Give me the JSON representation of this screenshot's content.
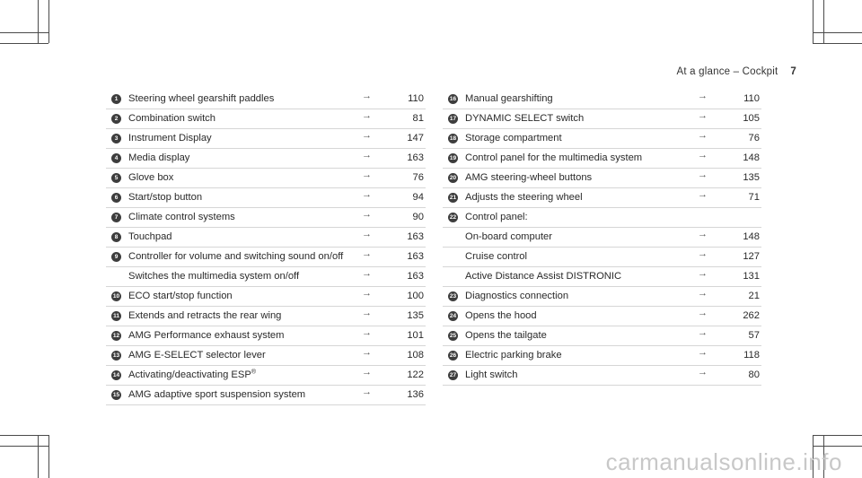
{
  "header": {
    "title": "At a glance – Cockpit",
    "page_number": "7"
  },
  "left_items": [
    {
      "num": "1",
      "label": "Steering wheel gearshift paddles",
      "page": "110"
    },
    {
      "num": "2",
      "label": "Combination switch",
      "page": "81"
    },
    {
      "num": "3",
      "label": "Instrument Display",
      "page": "147"
    },
    {
      "num": "4",
      "label": "Media display",
      "page": "163"
    },
    {
      "num": "5",
      "label": "Glove box",
      "page": "76"
    },
    {
      "num": "6",
      "label": "Start/stop button",
      "page": "94"
    },
    {
      "num": "7",
      "label": "Climate control systems",
      "page": "90"
    },
    {
      "num": "8",
      "label": "Touchpad",
      "page": "163"
    },
    {
      "num": "9",
      "label": "Controller for volume and switching sound on/off",
      "page": "163"
    },
    {
      "num": "",
      "label": "Switches the multimedia system on/off",
      "page": "163"
    },
    {
      "num": "10",
      "label": "ECO start/stop function",
      "page": "100"
    },
    {
      "num": "11",
      "label": "Extends and retracts the rear wing",
      "page": "135"
    },
    {
      "num": "12",
      "label": "AMG Performance exhaust system",
      "page": "101"
    },
    {
      "num": "13",
      "label": "AMG E-SELECT selector lever",
      "page": "108"
    },
    {
      "num": "14",
      "label": "Activating/deactivating ESP",
      "sup": "®",
      "page": "122"
    },
    {
      "num": "15",
      "label": "AMG adaptive sport suspension system",
      "page": "136"
    }
  ],
  "right_items": [
    {
      "num": "16",
      "label": "Manual gearshifting",
      "page": "110"
    },
    {
      "num": "17",
      "label": "DYNAMIC SELECT switch",
      "page": "105"
    },
    {
      "num": "18",
      "label": "Storage compartment",
      "page": "76"
    },
    {
      "num": "19",
      "label": "Control panel for the multimedia system",
      "page": "148"
    },
    {
      "num": "20",
      "label": "AMG steering-wheel buttons",
      "page": "135"
    },
    {
      "num": "21",
      "label": "Adjusts the steering wheel",
      "page": "71"
    },
    {
      "num": "22",
      "label": "Control panel:",
      "page": ""
    },
    {
      "num": "",
      "label": "On-board computer",
      "page": "148"
    },
    {
      "num": "",
      "label": "Cruise control",
      "page": "127"
    },
    {
      "num": "",
      "label": "Active Distance Assist DISTRONIC",
      "page": "131"
    },
    {
      "num": "23",
      "label": "Diagnostics connection",
      "page": "21"
    },
    {
      "num": "24",
      "label": "Opens the hood",
      "page": "262"
    },
    {
      "num": "25",
      "label": "Opens the tailgate",
      "page": "57"
    },
    {
      "num": "26",
      "label": "Electric parking brake",
      "page": "118"
    },
    {
      "num": "27",
      "label": "Light switch",
      "page": "80"
    }
  ],
  "arrow_glyph": "→",
  "watermark": "carmanualsonline.info"
}
